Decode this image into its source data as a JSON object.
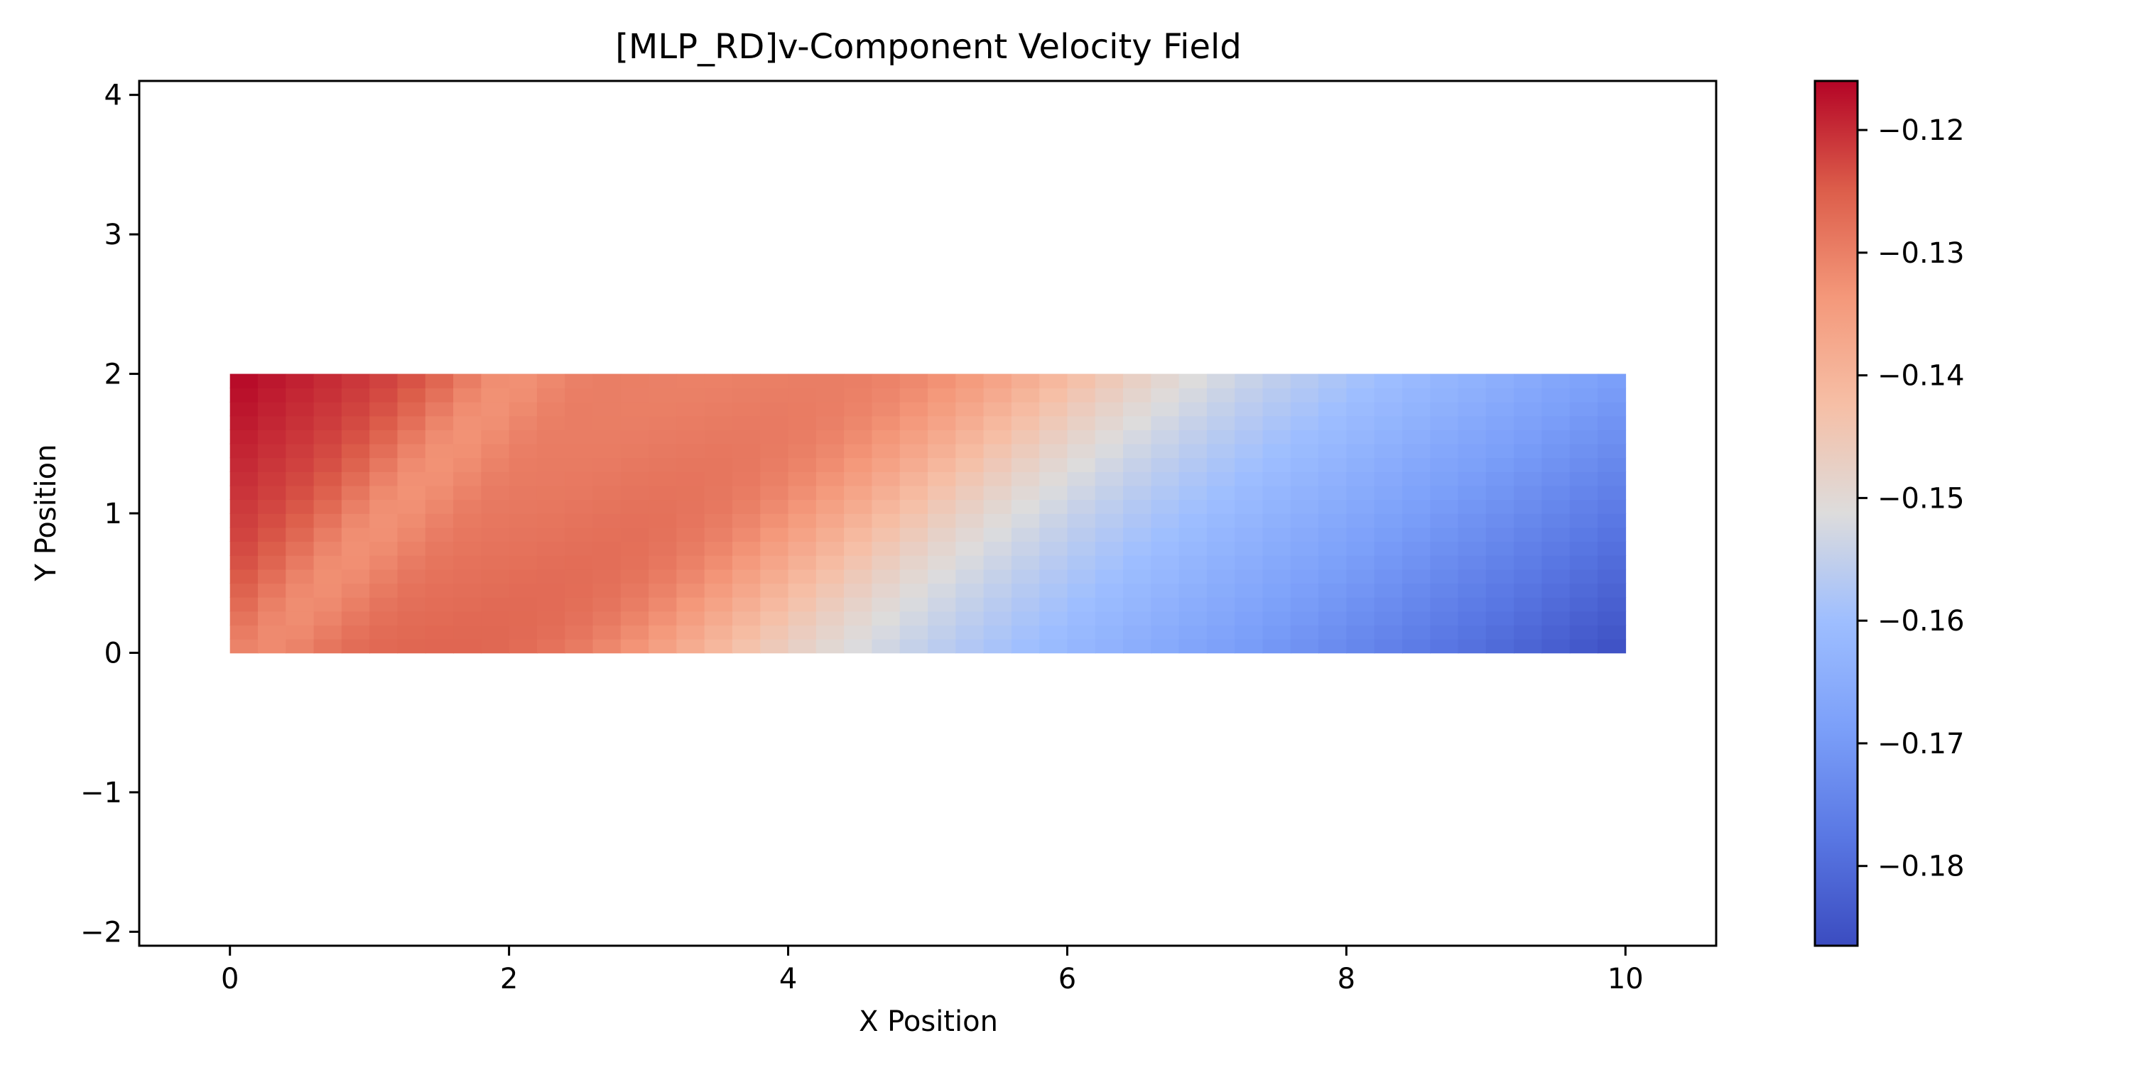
{
  "chart_data": {
    "type": "heatmap",
    "title": "[MLP_RD]v-Component Velocity Field",
    "xlabel": "X Position",
    "ylabel": "Y Position",
    "xlim": [
      -0.65,
      10.65
    ],
    "ylim": [
      -2.1,
      4.1
    ],
    "x_ticks": [
      {
        "value": 0,
        "label": "0"
      },
      {
        "value": 2,
        "label": "2"
      },
      {
        "value": 4,
        "label": "4"
      },
      {
        "value": 6,
        "label": "6"
      },
      {
        "value": 8,
        "label": "8"
      },
      {
        "value": 10,
        "label": "10"
      }
    ],
    "y_ticks": [
      {
        "value": -2,
        "label": "−2"
      },
      {
        "value": -1,
        "label": "−1"
      },
      {
        "value": 0,
        "label": "0"
      },
      {
        "value": 1,
        "label": "1"
      },
      {
        "value": 2,
        "label": "2"
      },
      {
        "value": 3,
        "label": "3"
      },
      {
        "value": 4,
        "label": "4"
      }
    ],
    "field": {
      "x_range": [
        0,
        10
      ],
      "y_range": [
        0,
        2
      ],
      "nx": 50,
      "ny": 20,
      "corner_values": {
        "x0_y0": -0.126,
        "x0_y2": -0.116,
        "x10_y0": -0.186,
        "x10_y2": -0.169
      },
      "ridge_values": [
        {
          "x": 2.2,
          "y": 0,
          "value": -0.124
        },
        {
          "x": 5.0,
          "y": 2,
          "value": -0.132
        },
        {
          "x": 6.5,
          "y": 0,
          "value": -0.15
        },
        {
          "x": 7.5,
          "y": 2,
          "value": -0.15
        }
      ]
    },
    "colorbar": {
      "colormap": "coolwarm",
      "vmin": -0.1865,
      "vmax": -0.116,
      "ticks": [
        {
          "value": -0.12,
          "label": "−0.12"
        },
        {
          "value": -0.13,
          "label": "−0.13"
        },
        {
          "value": -0.14,
          "label": "−0.14"
        },
        {
          "value": -0.15,
          "label": "−0.15"
        },
        {
          "value": -0.16,
          "label": "−0.16"
        },
        {
          "value": -0.17,
          "label": "−0.17"
        },
        {
          "value": -0.18,
          "label": "−0.18"
        }
      ],
      "stops": [
        {
          "t": 0.0,
          "color": "#3b4cc0"
        },
        {
          "t": 0.125,
          "color": "#5977e3"
        },
        {
          "t": 0.25,
          "color": "#7b9ff9"
        },
        {
          "t": 0.375,
          "color": "#9ebeff"
        },
        {
          "t": 0.5,
          "color": "#dddcdc"
        },
        {
          "t": 0.625,
          "color": "#f6bfa6"
        },
        {
          "t": 0.75,
          "color": "#f4987a"
        },
        {
          "t": 0.875,
          "color": "#dc5d4a"
        },
        {
          "t": 1.0,
          "color": "#b40426"
        }
      ]
    },
    "grid": false,
    "legend": "none"
  }
}
